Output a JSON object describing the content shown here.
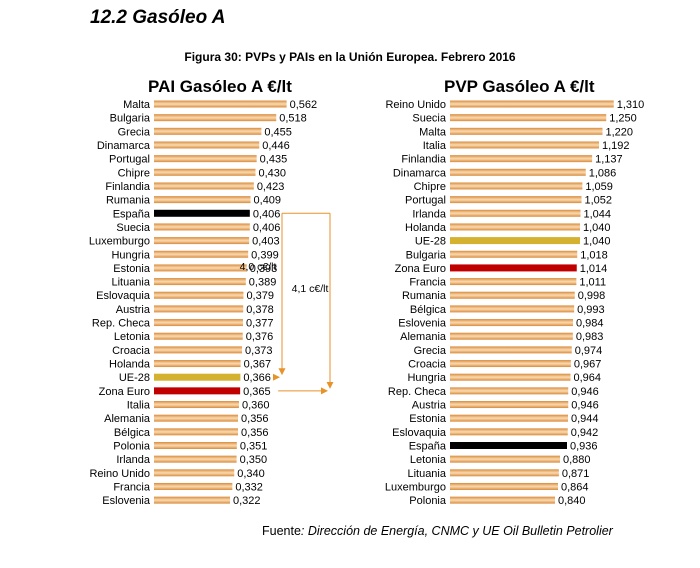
{
  "section_title": "12.2  Gasóleo A",
  "figure_title": "Figura 30: PVPs y PAIs en la Unión Europea. Febrero 2016",
  "source_prefix": "Fuente",
  "source_text": ": Dirección de Energía, CNMC y UE Oil Bulletin Petrolier",
  "colors": {
    "bar_default": "#d98a3a",
    "bar_stripe": "#f7d4a8",
    "bar_spain": "#000000",
    "bar_eu28": "#d4b12e",
    "bar_eurozone": "#c00000",
    "annotation": "#e8922a"
  },
  "chart_data": [
    {
      "type": "bar",
      "orientation": "horizontal",
      "title": "PAI Gasóleo A €/lt",
      "categories": [
        "Malta",
        "Bulgaria",
        "Grecia",
        "Dinamarca",
        "Portugal",
        "Chipre",
        "Finlandia",
        "Rumania",
        "España",
        "Suecia",
        "Luxemburgo",
        "Hungria",
        "Estonia",
        "Lituania",
        "Eslovaquia",
        "Austria",
        "Rep. Checa",
        "Letonia",
        "Croacia",
        "Holanda",
        "UE-28",
        "Zona Euro",
        "Italia",
        "Alemania",
        "Bélgica",
        "Polonia",
        "Irlanda",
        "Reino Unido",
        "Francia",
        "Eslovenia"
      ],
      "values": [
        0.562,
        0.518,
        0.455,
        0.446,
        0.435,
        0.43,
        0.423,
        0.409,
        0.406,
        0.406,
        0.403,
        0.399,
        0.393,
        0.389,
        0.379,
        0.378,
        0.377,
        0.376,
        0.373,
        0.367,
        0.366,
        0.365,
        0.36,
        0.356,
        0.356,
        0.351,
        0.35,
        0.34,
        0.332,
        0.322
      ],
      "value_labels": [
        "0,562",
        "0,518",
        "0,455",
        "0,446",
        "0,435",
        "0,430",
        "0,423",
        "0,409",
        "0,406",
        "0,406",
        "0,403",
        "0,399",
        "0,393",
        "0,389",
        "0,379",
        "0,378",
        "0,377",
        "0,376",
        "0,373",
        "0,367",
        "0,366",
        "0,365",
        "0,360",
        "0,356",
        "0,356",
        "0,351",
        "0,350",
        "0,340",
        "0,332",
        "0,322"
      ],
      "highlight": {
        "España": "spain",
        "UE-28": "eu28",
        "Zona Euro": "eurozone"
      },
      "annotations": [
        {
          "text": "4,0 c€/lt",
          "from": "España",
          "to": "UE-28"
        },
        {
          "text": "4,1 c€/lt",
          "from": "España",
          "to": "Zona Euro"
        }
      ]
    },
    {
      "type": "bar",
      "orientation": "horizontal",
      "title": "PVP Gasóleo A €/lt",
      "categories": [
        "Reino Unido",
        "Suecia",
        "Malta",
        "Italia",
        "Finlandia",
        "Dinamarca",
        "Chipre",
        "Portugal",
        "Irlanda",
        "Holanda",
        "UE-28",
        "Bulgaria",
        "Zona Euro",
        "Francia",
        "Rumania",
        "Bélgica",
        "Eslovenia",
        "Alemania",
        "Grecia",
        "Croacia",
        "Hungria",
        "Rep. Checa",
        "Austria",
        "Estonia",
        "Eslovaquia",
        "España",
        "Letonia",
        "Lituania",
        "Luxemburgo",
        "Polonia"
      ],
      "values": [
        1.31,
        1.25,
        1.22,
        1.192,
        1.137,
        1.086,
        1.059,
        1.052,
        1.044,
        1.04,
        1.04,
        1.018,
        1.014,
        1.011,
        0.998,
        0.993,
        0.984,
        0.983,
        0.974,
        0.967,
        0.964,
        0.946,
        0.946,
        0.944,
        0.942,
        0.936,
        0.88,
        0.871,
        0.864,
        0.84
      ],
      "value_labels": [
        "1,310",
        "1,250",
        "1,220",
        "1,192",
        "1,137",
        "1,086",
        "1,059",
        "1,052",
        "1,044",
        "1,040",
        "1,040",
        "1,018",
        "1,014",
        "1,011",
        "0,998",
        "0,993",
        "0,984",
        "0,983",
        "0,974",
        "0,967",
        "0,964",
        "0,946",
        "0,946",
        "0,944",
        "0,942",
        "0,936",
        "0,880",
        "0,871",
        "0,864",
        "0,840"
      ],
      "highlight": {
        "España": "spain",
        "UE-28": "eu28",
        "Zona Euro": "eurozone"
      }
    }
  ]
}
